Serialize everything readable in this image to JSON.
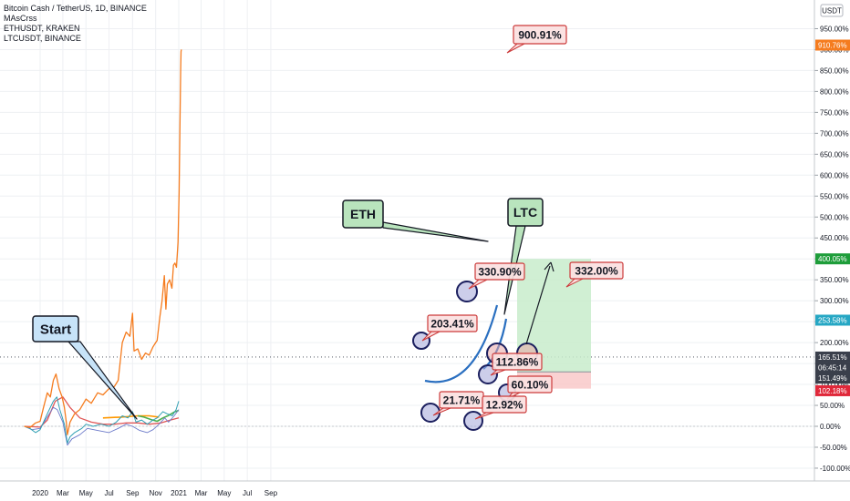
{
  "legend": [
    "Bitcoin Cash / TetherUS, 1D, BINANCE",
    "MAsCrss",
    "ETHUSDT, KRAKEN",
    "LTCUSDT, BINANCE"
  ],
  "currency_badge": "USDT",
  "colors": {
    "bch": "#f57c1f",
    "eth": "#2f9fb3",
    "ltc": "#6b79c9",
    "ma_red": "#e05858",
    "ma_green": "#4caf50",
    "ma_orange": "#ff9800",
    "curve_blue": "#2a6fc0",
    "callout_start": "#c7e3f8",
    "callout_eth": "#b9e4bd",
    "note_fill": "#fbe0e0",
    "note_border": "#cc3a3a",
    "tag_orange": "#f57c1f",
    "tag_green": "#1e9d3a",
    "tag_teal": "#26a7c4",
    "tag_dark": "#3a3f4b",
    "tag_red": "#e0283a",
    "profit_zone": "#c8eccb",
    "loss_zone": "#f9c9c9"
  },
  "chart_data": {
    "type": "line",
    "y_unit": "%",
    "ylim": [
      -110,
      960
    ],
    "y_ticks": [
      950,
      900,
      850,
      800,
      750,
      700,
      650,
      600,
      550,
      500,
      450,
      400,
      350,
      300,
      250,
      200,
      150,
      100,
      50,
      0,
      -50,
      -100
    ],
    "y_tick_labels": [
      "950.00%",
      "900.00%",
      "850.00%",
      "800.00%",
      "750.00%",
      "700.00%",
      "650.00%",
      "600.00%",
      "550.00%",
      "500.00%",
      "450.00%",
      "400.00%",
      "350.00%",
      "300.00%",
      "250.00%",
      "200.00%",
      "150.00%",
      "100.00%",
      "50.00%",
      "0.00%",
      "-50.00%",
      "-100.00%"
    ],
    "x_labels": [
      {
        "label": "2020",
        "date": "2020-01-01"
      },
      {
        "label": "Mar",
        "date": "2020-03-01"
      },
      {
        "label": "May",
        "date": "2020-05-01"
      },
      {
        "label": "Jul",
        "date": "2020-07-01"
      },
      {
        "label": "Sep",
        "date": "2020-09-01"
      },
      {
        "label": "Nov",
        "date": "2020-11-01"
      },
      {
        "label": "2021",
        "date": "2021-01-01"
      },
      {
        "label": "Mar",
        "date": "2021-03-01"
      },
      {
        "label": "May",
        "date": "2021-05-01"
      },
      {
        "label": "Jul",
        "date": "2021-07-01"
      },
      {
        "label": "Sep",
        "date": "2021-09-01"
      }
    ],
    "x_range": [
      "2019-11-20",
      "2021-10-01"
    ],
    "series": [
      {
        "key": "bch",
        "color": "#f57c1f",
        "width": 1.3,
        "points": [
          [
            "2019-11-20",
            0
          ],
          [
            "2019-12-05",
            -3
          ],
          [
            "2019-12-20",
            8
          ],
          [
            "2020-01-01",
            12
          ],
          [
            "2020-01-10",
            45
          ],
          [
            "2020-01-20",
            80
          ],
          [
            "2020-01-28",
            70
          ],
          [
            "2020-02-05",
            110
          ],
          [
            "2020-02-12",
            125
          ],
          [
            "2020-02-20",
            90
          ],
          [
            "2020-02-28",
            70
          ],
          [
            "2020-03-05",
            45
          ],
          [
            "2020-03-10",
            10
          ],
          [
            "2020-03-13",
            -20
          ],
          [
            "2020-03-20",
            10
          ],
          [
            "2020-04-01",
            30
          ],
          [
            "2020-04-15",
            40
          ],
          [
            "2020-05-01",
            65
          ],
          [
            "2020-05-15",
            55
          ],
          [
            "2020-06-01",
            80
          ],
          [
            "2020-06-15",
            75
          ],
          [
            "2020-07-01",
            90
          ],
          [
            "2020-07-15",
            95
          ],
          [
            "2020-07-25",
            110
          ],
          [
            "2020-08-05",
            200
          ],
          [
            "2020-08-15",
            225
          ],
          [
            "2020-08-25",
            215
          ],
          [
            "2020-09-01",
            270
          ],
          [
            "2020-09-05",
            180
          ],
          [
            "2020-09-15",
            185
          ],
          [
            "2020-09-25",
            160
          ],
          [
            "2020-10-05",
            175
          ],
          [
            "2020-10-15",
            170
          ],
          [
            "2020-10-25",
            190
          ],
          [
            "2020-11-01",
            200
          ],
          [
            "2020-11-05",
            205
          ],
          [
            "2020-11-12",
            260
          ],
          [
            "2020-11-18",
            300
          ],
          [
            "2020-11-24",
            360
          ],
          [
            "2020-11-28",
            280
          ],
          [
            "2020-12-02",
            340
          ],
          [
            "2020-12-08",
            350
          ],
          [
            "2020-12-14",
            330
          ],
          [
            "2020-12-18",
            385
          ],
          [
            "2020-12-22",
            390
          ],
          [
            "2020-12-26",
            380
          ],
          [
            "2020-12-30",
            440
          ],
          [
            "2021-01-02",
            560
          ],
          [
            "2021-01-04",
            700
          ],
          [
            "2021-01-06",
            850
          ],
          [
            "2021-01-07",
            895
          ],
          [
            "2021-01-08",
            900
          ]
        ]
      },
      {
        "key": "eth",
        "color": "#2f9fb3",
        "width": 1.0,
        "points": [
          [
            "2019-11-20",
            0
          ],
          [
            "2019-12-05",
            -5
          ],
          [
            "2019-12-20",
            -15
          ],
          [
            "2020-01-01",
            -8
          ],
          [
            "2020-01-10",
            10
          ],
          [
            "2020-01-20",
            30
          ],
          [
            "2020-02-05",
            60
          ],
          [
            "2020-02-14",
            70
          ],
          [
            "2020-02-22",
            40
          ],
          [
            "2020-03-05",
            5
          ],
          [
            "2020-03-13",
            -40
          ],
          [
            "2020-03-20",
            -25
          ],
          [
            "2020-04-01",
            -15
          ],
          [
            "2020-04-20",
            -5
          ],
          [
            "2020-05-01",
            5
          ],
          [
            "2020-05-20",
            0
          ],
          [
            "2020-06-10",
            5
          ],
          [
            "2020-07-01",
            0
          ],
          [
            "2020-07-20",
            10
          ],
          [
            "2020-08-05",
            25
          ],
          [
            "2020-08-20",
            20
          ],
          [
            "2020-09-01",
            35
          ],
          [
            "2020-09-10",
            10
          ],
          [
            "2020-09-25",
            15
          ],
          [
            "2020-10-10",
            5
          ],
          [
            "2020-10-25",
            15
          ],
          [
            "2020-11-05",
            20
          ],
          [
            "2020-11-20",
            35
          ],
          [
            "2020-12-01",
            30
          ],
          [
            "2020-12-15",
            25
          ],
          [
            "2020-12-25",
            40
          ],
          [
            "2021-01-01",
            60
          ]
        ]
      },
      {
        "key": "ltc",
        "color": "#6b79c9",
        "width": 0.9,
        "points": [
          [
            "2019-11-20",
            0
          ],
          [
            "2019-12-10",
            -8
          ],
          [
            "2020-01-01",
            -5
          ],
          [
            "2020-01-15",
            15
          ],
          [
            "2020-02-05",
            45
          ],
          [
            "2020-02-15",
            40
          ],
          [
            "2020-03-01",
            10
          ],
          [
            "2020-03-13",
            -45
          ],
          [
            "2020-03-25",
            -30
          ],
          [
            "2020-04-15",
            -20
          ],
          [
            "2020-05-05",
            -5
          ],
          [
            "2020-06-01",
            -10
          ],
          [
            "2020-07-01",
            -15
          ],
          [
            "2020-07-25",
            -5
          ],
          [
            "2020-08-15",
            5
          ],
          [
            "2020-09-01",
            0
          ],
          [
            "2020-09-20",
            -10
          ],
          [
            "2020-10-10",
            -15
          ],
          [
            "2020-10-25",
            -8
          ],
          [
            "2020-11-10",
            5
          ],
          [
            "2020-11-25",
            20
          ],
          [
            "2020-12-05",
            10
          ],
          [
            "2020-12-20",
            25
          ],
          [
            "2021-01-01",
            40
          ]
        ]
      },
      {
        "key": "ma_red",
        "color": "#e05858",
        "width": 1.3,
        "points": [
          [
            "2019-11-20",
            0
          ],
          [
            "2020-01-01",
            -2
          ],
          [
            "2020-01-20",
            15
          ],
          [
            "2020-02-10",
            60
          ],
          [
            "2020-03-01",
            70
          ],
          [
            "2020-03-20",
            45
          ],
          [
            "2020-04-15",
            20
          ],
          [
            "2020-05-15",
            10
          ],
          [
            "2020-06-15",
            5
          ],
          [
            "2020-07-15",
            5
          ],
          [
            "2020-08-15",
            8
          ],
          [
            "2020-09-15",
            8
          ],
          [
            "2020-10-15",
            5
          ],
          [
            "2020-11-15",
            8
          ],
          [
            "2020-12-10",
            15
          ],
          [
            "2021-01-01",
            20
          ]
        ]
      },
      {
        "key": "ma_green",
        "color": "#4caf50",
        "width": 1.6,
        "points": [
          [
            "2020-09-15",
            25
          ],
          [
            "2020-10-01",
            22
          ],
          [
            "2020-10-20",
            16
          ],
          [
            "2020-11-05",
            12
          ],
          [
            "2020-11-20",
            20
          ],
          [
            "2020-12-05",
            26
          ],
          [
            "2020-12-20",
            34
          ],
          [
            "2021-01-01",
            38
          ]
        ]
      },
      {
        "key": "ma_orange",
        "color": "#ff9800",
        "width": 1.6,
        "points": [
          [
            "2020-06-15",
            20
          ],
          [
            "2020-08-01",
            22
          ],
          [
            "2020-09-15",
            25
          ],
          [
            "2020-10-15",
            25
          ],
          [
            "2020-11-10",
            22
          ]
        ]
      }
    ],
    "price_tags": [
      {
        "label": "910.76%",
        "value": 910.76,
        "color": "#f57c1f"
      },
      {
        "label": "400.05%",
        "value": 400.05,
        "color": "#1e9d3a"
      },
      {
        "label": "253.58%",
        "value": 253.58,
        "color": "#26a7c4"
      },
      {
        "label": "165.51%",
        "value": 165.51,
        "color": "#3a3f4b"
      },
      {
        "label": "06:45:14",
        "value": 140,
        "color": "#3a3f4b"
      },
      {
        "label": "151.49%",
        "value": 115,
        "color": "#3a3f4b"
      },
      {
        "label": "102.18%",
        "value": 85,
        "color": "#e0283a"
      }
    ],
    "callouts": [
      {
        "label": "Start",
        "fill": "#c7e3f8"
      },
      {
        "label": "ETH",
        "fill": "#b9e4bd"
      },
      {
        "label": "LTC",
        "fill": "#b9e4bd"
      }
    ],
    "notes": [
      {
        "label": "900.91%"
      },
      {
        "label": "330.90%"
      },
      {
        "label": "203.41%"
      },
      {
        "label": "332.00%"
      },
      {
        "label": "112.86%"
      },
      {
        "label": "60.10%"
      },
      {
        "label": "21.71%"
      },
      {
        "label": "12.92%"
      }
    ]
  }
}
